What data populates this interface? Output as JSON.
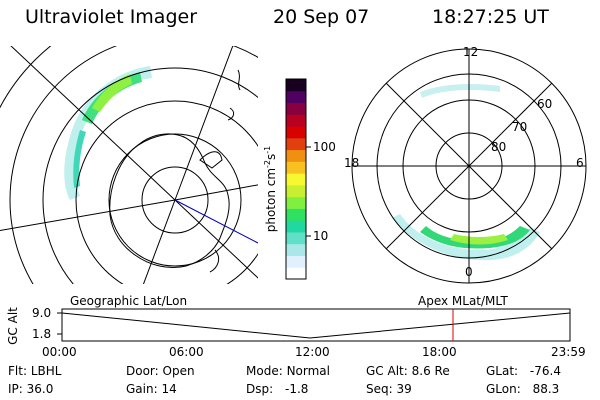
{
  "header": {
    "title": "Ultraviolet Imager",
    "date": "20 Sep 07",
    "time": "18:27:25 UT"
  },
  "colorbar": {
    "unit_label": "photon cm",
    "unit_exp_a": "-2",
    "unit_mid": "s",
    "unit_exp_b": "-1",
    "tick_100": "100",
    "tick_10": "10",
    "colors": [
      "#ffffff",
      "#e0f0ff",
      "#a8e8e8",
      "#60e0c8",
      "#20d8a0",
      "#30e060",
      "#80f040",
      "#c8f030",
      "#f8f830",
      "#f8c020",
      "#f09010",
      "#e04010",
      "#d80000",
      "#b80020",
      "#880040",
      "#500060",
      "#180020"
    ]
  },
  "left_map": {
    "caption": "Geographic Lat/Lon"
  },
  "right_map": {
    "caption": "Apex  MLat/MLT",
    "mlt_12": "12",
    "mlt_18": "18",
    "mlt_6": "6",
    "mlt_0": "0",
    "lat_60": "60",
    "lat_70": "70",
    "lat_80": "80"
  },
  "timeline": {
    "ylabel": "GC Alt",
    "y_top": "9.0",
    "y_bottom": "1.8",
    "x_ticks": [
      "00:00",
      "06:00",
      "12:00",
      "18:00",
      "23:59"
    ],
    "current_time_marker_color": "#e00000"
  },
  "info": {
    "flt_label": "Flt:",
    "flt_value": "LBHL",
    "ip_label": "IP:",
    "ip_value": "36.0",
    "door_label": "Door:",
    "door_value": "Open",
    "gain_label": "Gain:",
    "gain_value": "14",
    "mode_label": "Mode:",
    "mode_value": "Normal",
    "dsp_label": "Dsp:",
    "dsp_value": "-1.8",
    "gcalt_label": "GC Alt:",
    "gcalt_value": "8.6 Re",
    "seq_label": "Seq:",
    "seq_value": "39",
    "glat_label": "GLat:",
    "glat_value": "-76.4",
    "glon_label": "GLon:",
    "glon_value": "88.3"
  }
}
